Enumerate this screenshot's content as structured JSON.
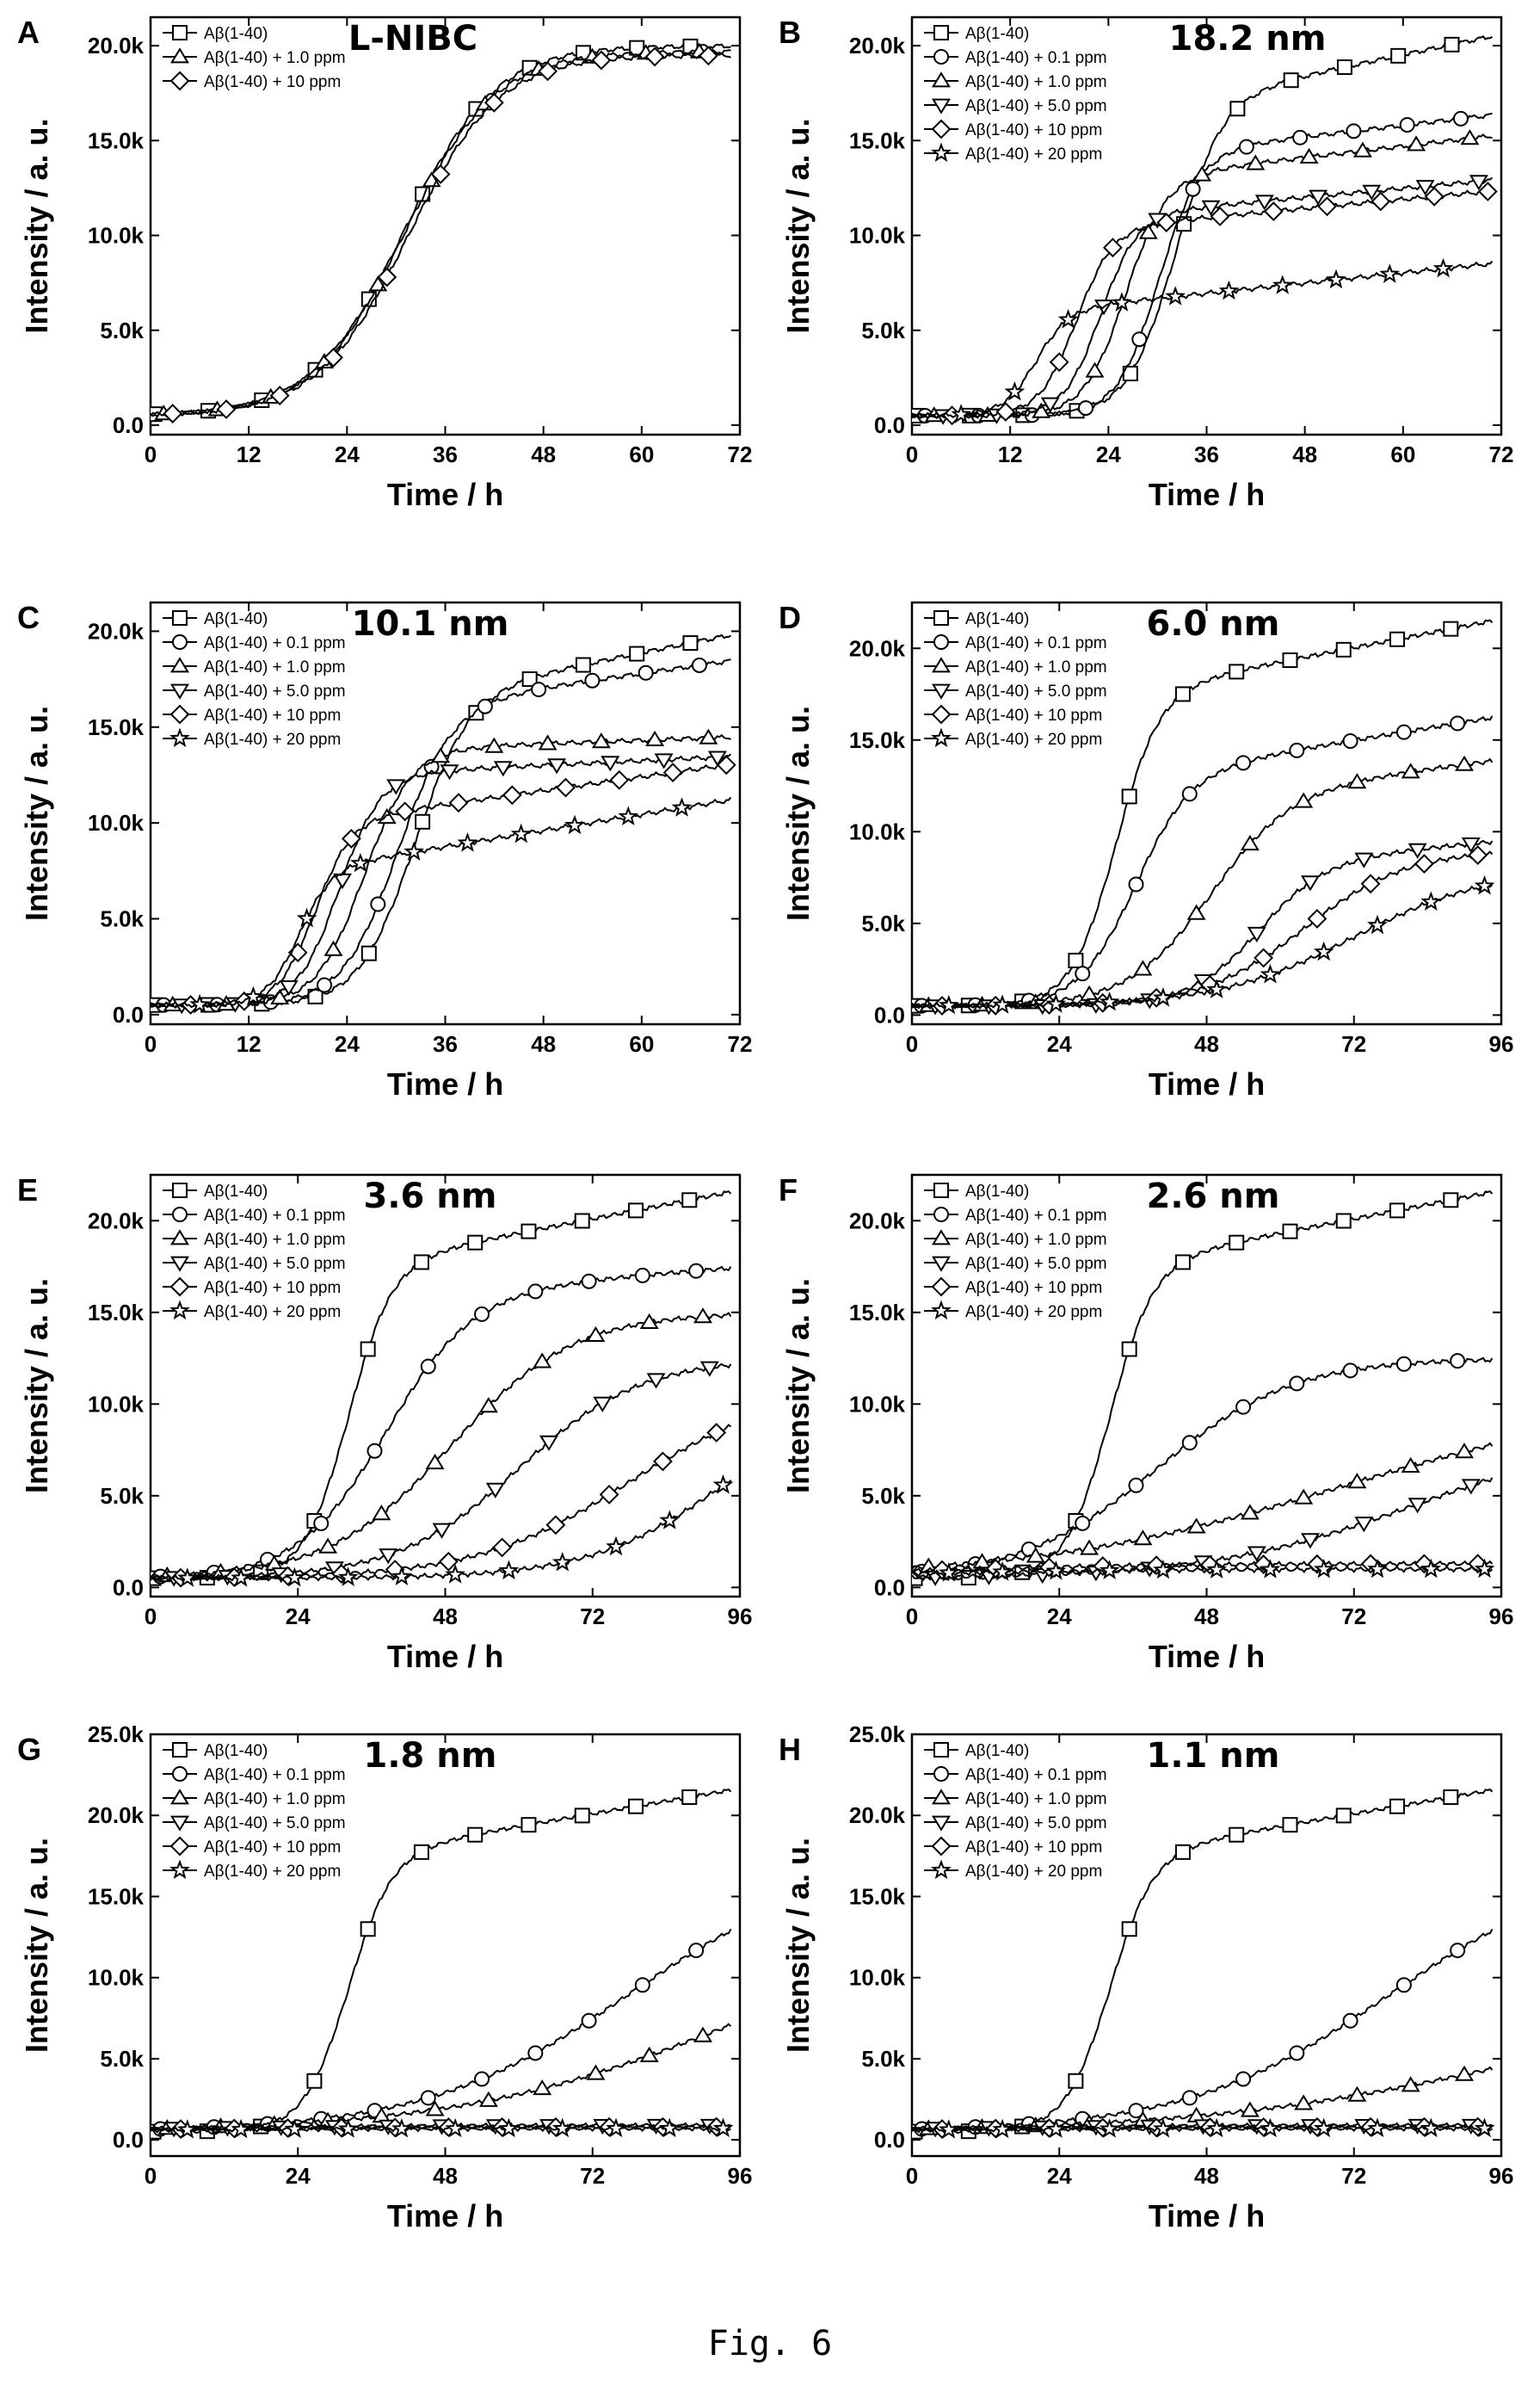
{
  "caption": "Fig. 6",
  "colors": {
    "line": "#000000",
    "background": "#ffffff"
  },
  "chart_data": [
    {
      "panel": "A",
      "title": "L-NIBC",
      "type": "line",
      "xlabel": "Time / h",
      "ylabel": "Intensity / a. u.",
      "xlim": [
        0,
        72
      ],
      "xticks": [
        0,
        12,
        24,
        36,
        48,
        60,
        72
      ],
      "ylim": [
        -500,
        21500
      ],
      "yticks": [
        0,
        5000,
        10000,
        15000,
        20000
      ],
      "ytick_labels": [
        "0.0",
        "5.0k",
        "10.0k",
        "15.0k",
        "20.0k"
      ],
      "legend": "top-left",
      "series": [
        {
          "name": "Aβ(1-40)",
          "marker": "square",
          "onset": 31,
          "plateau": 19500,
          "k": 0.18,
          "slope": 0
        },
        {
          "name": "Aβ(1-40) + 1.0 ppm",
          "marker": "triangle",
          "onset": 31,
          "plateau": 19200,
          "k": 0.18,
          "slope": 0
        },
        {
          "name": "Aβ(1-40) + 10 ppm",
          "marker": "diamond",
          "onset": 31.5,
          "plateau": 19000,
          "k": 0.18,
          "slope": 0
        }
      ]
    },
    {
      "panel": "B",
      "title": "18.2 nm",
      "type": "line",
      "xlabel": "Time / h",
      "ylabel": "Intensity / a. u.",
      "xlim": [
        0,
        72
      ],
      "xticks": [
        0,
        12,
        24,
        36,
        48,
        60,
        72
      ],
      "ylim": [
        -500,
        21500
      ],
      "yticks": [
        0,
        5000,
        10000,
        15000,
        20000
      ],
      "ytick_labels": [
        "0.0",
        "5.0k",
        "10.0k",
        "15.0k",
        "20.0k"
      ],
      "legend": "top-left",
      "series": [
        {
          "name": "Aβ(1-40)",
          "marker": "square",
          "onset": 32,
          "plateau": 16500,
          "k": 0.35,
          "slope": 90
        },
        {
          "name": "Aβ(1-40) + 0.1 ppm",
          "marker": "circle",
          "onset": 30,
          "plateau": 13800,
          "k": 0.4,
          "slope": 50
        },
        {
          "name": "Aβ(1-40) + 1.0 ppm",
          "marker": "triangle",
          "onset": 26,
          "plateau": 12500,
          "k": 0.4,
          "slope": 50
        },
        {
          "name": "Aβ(1-40) + 5.0 ppm",
          "marker": "triangle-down",
          "onset": 23,
          "plateau": 10500,
          "k": 0.45,
          "slope": 40
        },
        {
          "name": "Aβ(1-40) + 10 ppm",
          "marker": "diamond",
          "onset": 20,
          "plateau": 9800,
          "k": 0.45,
          "slope": 40
        },
        {
          "name": "Aβ(1-40) + 20 ppm",
          "marker": "star",
          "onset": 15,
          "plateau": 5500,
          "k": 0.5,
          "slope": 45
        }
      ]
    },
    {
      "panel": "C",
      "title": "10.1 nm",
      "type": "line",
      "xlabel": "Time / h",
      "ylabel": "Intensity / a. u.",
      "xlim": [
        0,
        72
      ],
      "xticks": [
        0,
        12,
        24,
        36,
        48,
        60,
        72
      ],
      "ylim": [
        -500,
        21500
      ],
      "yticks": [
        0,
        5000,
        10000,
        15000,
        20000
      ],
      "ytick_labels": [
        "0.0",
        "5.0k",
        "10.0k",
        "15.0k",
        "20.0k"
      ],
      "legend": "top-left",
      "series": [
        {
          "name": "Aβ(1-40)",
          "marker": "square",
          "onset": 32,
          "plateau": 16000,
          "k": 0.3,
          "slope": 85
        },
        {
          "name": "Aβ(1-40) + 0.1 ppm",
          "marker": "circle",
          "onset": 30,
          "plateau": 15500,
          "k": 0.3,
          "slope": 60
        },
        {
          "name": "Aβ(1-40) + 1.0 ppm",
          "marker": "triangle",
          "onset": 26,
          "plateau": 13300,
          "k": 0.35,
          "slope": 15
        },
        {
          "name": "Aβ(1-40) + 5.0 ppm",
          "marker": "triangle-down",
          "onset": 23,
          "plateau": 12000,
          "k": 0.4,
          "slope": 20
        },
        {
          "name": "Aβ(1-40) + 10 ppm",
          "marker": "diamond",
          "onset": 20,
          "plateau": 9500,
          "k": 0.45,
          "slope": 60
        },
        {
          "name": "Aβ(1-40) + 20 ppm",
          "marker": "star",
          "onset": 18,
          "plateau": 7000,
          "k": 0.5,
          "slope": 70
        }
      ]
    },
    {
      "panel": "D",
      "title": "6.0 nm",
      "type": "line",
      "xlabel": "Time / h",
      "ylabel": "Intensity / a. u.",
      "xlim": [
        0,
        96
      ],
      "xticks": [
        0,
        24,
        48,
        72,
        96
      ],
      "ylim": [
        -500,
        22500
      ],
      "yticks": [
        0,
        5000,
        10000,
        15000,
        20000
      ],
      "ytick_labels": [
        "0.0",
        "5.0k",
        "10.0k",
        "15.0k",
        "20.0k"
      ],
      "legend": "top-left",
      "series": [
        {
          "name": "Aβ(1-40)",
          "marker": "square",
          "onset": 33,
          "plateau": 17000,
          "k": 0.28,
          "slope": 65
        },
        {
          "name": "Aβ(1-40) + 0.1 ppm",
          "marker": "circle",
          "onset": 36,
          "plateau": 12500,
          "k": 0.22,
          "slope": 55
        },
        {
          "name": "Aβ(1-40) + 1.0 ppm",
          "marker": "triangle",
          "onset": 48,
          "plateau": 11500,
          "k": 0.15,
          "slope": 40
        },
        {
          "name": "Aβ(1-40) + 5.0 ppm",
          "marker": "triangle-down",
          "onset": 56,
          "plateau": 7800,
          "k": 0.18,
          "slope": 30
        },
        {
          "name": "Aβ(1-40) + 10 ppm",
          "marker": "diamond",
          "onset": 64,
          "plateau": 8500,
          "k": 0.12,
          "slope": 0
        },
        {
          "name": "Aβ(1-40) + 20 ppm",
          "marker": "star",
          "onset": 72,
          "plateau": 7500,
          "k": 0.09,
          "slope": 0
        }
      ]
    },
    {
      "panel": "E",
      "title": "3.6 nm",
      "type": "line",
      "xlabel": "Time / h",
      "ylabel": "Intensity / a. u.",
      "xlim": [
        0,
        96
      ],
      "xticks": [
        0,
        24,
        48,
        72,
        96
      ],
      "ylim": [
        -500,
        22500
      ],
      "yticks": [
        0,
        5000,
        10000,
        15000,
        20000
      ],
      "ytick_labels": [
        "0.0",
        "5.0k",
        "10.0k",
        "15.0k",
        "20.0k"
      ],
      "legend": "top-left",
      "series": [
        {
          "name": "Aβ(1-40)",
          "marker": "square",
          "onset": 32,
          "plateau": 17000,
          "k": 0.28,
          "slope": 65
        },
        {
          "name": "Aβ(1-40) + 0.1 ppm",
          "marker": "circle",
          "onset": 38,
          "plateau": 15500,
          "k": 0.14,
          "slope": 25
        },
        {
          "name": "Aβ(1-40) + 1.0 ppm",
          "marker": "triangle",
          "onset": 49,
          "plateau": 14500,
          "k": 0.1,
          "slope": 0
        },
        {
          "name": "Aβ(1-40) + 5.0 ppm",
          "marker": "triangle-down",
          "onset": 60,
          "plateau": 12000,
          "k": 0.1,
          "slope": 0
        },
        {
          "name": "Aβ(1-40) + 10 ppm",
          "marker": "diamond",
          "onset": 78,
          "plateau": 10500,
          "k": 0.08,
          "slope": 0
        },
        {
          "name": "Aβ(1-40) + 20 ppm",
          "marker": "star",
          "onset": 94,
          "plateau": 10500,
          "k": 0.09,
          "slope": 0
        }
      ]
    },
    {
      "panel": "F",
      "title": "2.6 nm",
      "type": "line",
      "xlabel": "Time / h",
      "ylabel": "Intensity / a. u.",
      "xlim": [
        0,
        96
      ],
      "xticks": [
        0,
        24,
        48,
        72,
        96
      ],
      "ylim": [
        -500,
        22500
      ],
      "yticks": [
        0,
        5000,
        10000,
        15000,
        20000
      ],
      "ytick_labels": [
        "0.0",
        "5.0k",
        "10.0k",
        "15.0k",
        "20.0k"
      ],
      "legend": "top-left",
      "series": [
        {
          "name": "Aβ(1-40)",
          "marker": "square",
          "onset": 32,
          "plateau": 17000,
          "k": 0.28,
          "slope": 65
        },
        {
          "name": "Aβ(1-40) + 0.1 ppm",
          "marker": "circle",
          "onset": 40,
          "plateau": 12000,
          "k": 0.09,
          "slope": 0
        },
        {
          "name": "Aβ(1-40) + 1.0 ppm",
          "marker": "triangle",
          "onset": 70,
          "plateau": 10000,
          "k": 0.04,
          "slope": 0
        },
        {
          "name": "Aβ(1-40) + 5.0 ppm",
          "marker": "triangle-down",
          "onset": 82,
          "plateau": 8000,
          "k": 0.06,
          "slope": 0
        },
        {
          "name": "Aβ(1-40) + 10 ppm",
          "marker": "diamond",
          "onset": 0,
          "plateau": 800,
          "k": 0.05,
          "slope": 0
        },
        {
          "name": "Aβ(1-40) + 20 ppm",
          "marker": "star",
          "onset": 0,
          "plateau": 500,
          "k": 0.05,
          "slope": 0
        }
      ]
    },
    {
      "panel": "G",
      "title": "1.8 nm",
      "type": "line",
      "xlabel": "Time / h",
      "ylabel": "Intensity / a. u.",
      "xlim": [
        0,
        96
      ],
      "xticks": [
        0,
        24,
        48,
        72,
        96
      ],
      "ylim": [
        -1000,
        25000
      ],
      "yticks": [
        0,
        5000,
        10000,
        15000,
        20000,
        25000
      ],
      "ytick_labels": [
        "0.0",
        "5.0k",
        "10.0k",
        "15.0k",
        "20.0k",
        "25.0k"
      ],
      "legend": "top-left",
      "series": [
        {
          "name": "Aβ(1-40)",
          "marker": "square",
          "onset": 32,
          "plateau": 17000,
          "k": 0.28,
          "slope": 65
        },
        {
          "name": "Aβ(1-40) + 0.1 ppm",
          "marker": "circle",
          "onset": 78,
          "plateau": 17000,
          "k": 0.06,
          "slope": 0
        },
        {
          "name": "Aβ(1-40) + 1.0 ppm",
          "marker": "triangle",
          "onset": 94,
          "plateau": 13000,
          "k": 0.045,
          "slope": 0
        },
        {
          "name": "Aβ(1-40) + 5.0 ppm",
          "marker": "triangle-down",
          "onset": 0,
          "plateau": 400,
          "k": 0.05,
          "slope": 0
        },
        {
          "name": "Aβ(1-40) + 10 ppm",
          "marker": "diamond",
          "onset": 0,
          "plateau": 300,
          "k": 0.05,
          "slope": 0
        },
        {
          "name": "Aβ(1-40) + 20 ppm",
          "marker": "star",
          "onset": 0,
          "plateau": 200,
          "k": 0.05,
          "slope": 0
        }
      ]
    },
    {
      "panel": "H",
      "title": "1.1 nm",
      "type": "line",
      "xlabel": "Time / h",
      "ylabel": "Intensity / a. u.",
      "xlim": [
        0,
        96
      ],
      "xticks": [
        0,
        24,
        48,
        72,
        96
      ],
      "ylim": [
        -1000,
        25000
      ],
      "yticks": [
        0,
        5000,
        10000,
        15000,
        20000,
        25000
      ],
      "ytick_labels": [
        "0.0",
        "5.0k",
        "10.0k",
        "15.0k",
        "20.0k",
        "25.0k"
      ],
      "legend": "top-left",
      "series": [
        {
          "name": "Aβ(1-40)",
          "marker": "square",
          "onset": 32,
          "plateau": 17000,
          "k": 0.28,
          "slope": 65
        },
        {
          "name": "Aβ(1-40) + 0.1 ppm",
          "marker": "circle",
          "onset": 78,
          "plateau": 17000,
          "k": 0.06,
          "slope": 0
        },
        {
          "name": "Aβ(1-40) + 1.0 ppm",
          "marker": "triangle",
          "onset": 96,
          "plateau": 8000,
          "k": 0.04,
          "slope": 0
        },
        {
          "name": "Aβ(1-40) + 5.0 ppm",
          "marker": "triangle-down",
          "onset": 0,
          "plateau": 400,
          "k": 0.05,
          "slope": 0
        },
        {
          "name": "Aβ(1-40) + 10 ppm",
          "marker": "diamond",
          "onset": 0,
          "plateau": 300,
          "k": 0.05,
          "slope": 0
        },
        {
          "name": "Aβ(1-40) + 20 ppm",
          "marker": "star",
          "onset": 0,
          "plateau": 200,
          "k": 0.05,
          "slope": 0
        }
      ]
    }
  ]
}
